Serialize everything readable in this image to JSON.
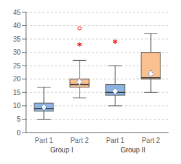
{
  "chart_data": {
    "type": "box",
    "categories": [
      "Part 1",
      "Part 2",
      "Part 1",
      "Part 2"
    ],
    "groups": [
      "Group I",
      "Group I",
      "Group II",
      "Group II"
    ],
    "q1": [
      8,
      17,
      14,
      20
    ],
    "q3": [
      11,
      20,
      18,
      30
    ],
    "median": [
      9,
      18,
      15,
      20.5
    ],
    "whisker_low": [
      5,
      13,
      10,
      15
    ],
    "whisker_high": [
      17,
      27,
      25,
      37
    ],
    "mean": {
      "values": [
        9.5,
        19,
        15.5,
        22
      ],
      "marker": "diamond",
      "color": "#4472C4"
    },
    "outliers": {
      "values": [
        [],
        [
          39
        ],
        [],
        []
      ],
      "marker": "circle",
      "color": "red"
    },
    "asterisks": {
      "values": [
        [],
        [
          33
        ],
        [
          34
        ],
        []
      ],
      "marker": "asterisk",
      "color": "red"
    },
    "colors": [
      "#8DB4E2",
      "#FAC090",
      "#8DB4E2",
      "#FAC090"
    ],
    "ylim": [
      0,
      45
    ],
    "yticks": [
      0,
      5,
      10,
      15,
      20,
      25,
      30,
      35,
      40,
      45
    ],
    "grid": true
  }
}
